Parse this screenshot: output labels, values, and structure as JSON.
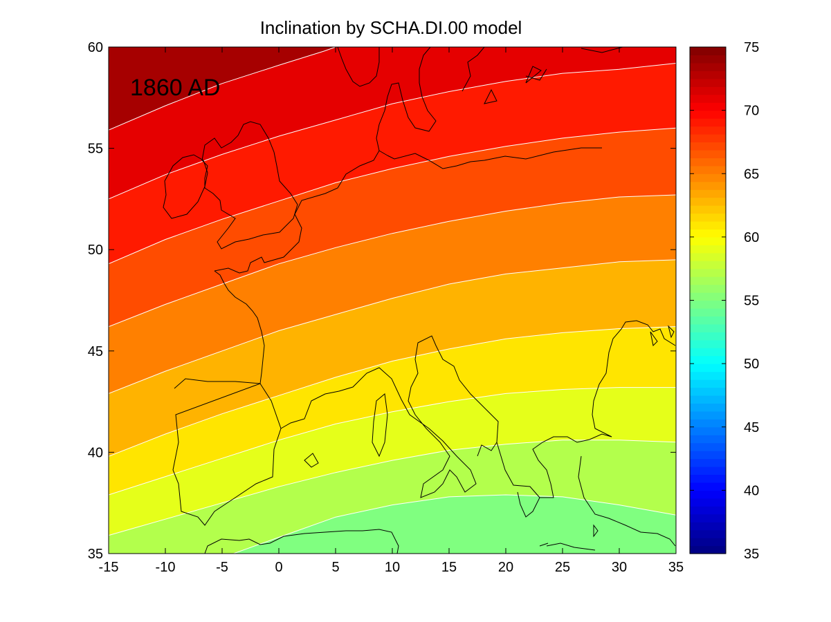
{
  "chart_data": {
    "type": "heatmap",
    "subtype": "filled-contour-map",
    "title": "Inclination by SCHA.DI.00 model",
    "annotation": "1860 AD",
    "xlabel": "",
    "ylabel": "",
    "xlim": [
      -15,
      35
    ],
    "ylim": [
      35,
      60
    ],
    "x_ticks": [
      "-15",
      "-10",
      "-5",
      "0",
      "5",
      "10",
      "15",
      "20",
      "25",
      "30",
      "35"
    ],
    "y_ticks": [
      "35",
      "40",
      "45",
      "50",
      "55",
      "60"
    ],
    "colorbar": {
      "colormap": "jet",
      "range": [
        35,
        75
      ],
      "ticks": [
        "35",
        "40",
        "45",
        "50",
        "55",
        "60",
        "65",
        "70",
        "75"
      ]
    },
    "contour_levels": [
      56,
      58,
      60,
      62,
      64,
      66,
      68,
      70,
      72
    ],
    "contour_line_color": "#ffffff",
    "coastline_color": "#000000",
    "contour_lines": [
      {
        "level": 56,
        "points": [
          [
            -4,
            35
          ],
          [
            0,
            35.8
          ],
          [
            5,
            36.8
          ],
          [
            10,
            37.4
          ],
          [
            15,
            37.8
          ],
          [
            20,
            37.9
          ],
          [
            25,
            37.8
          ],
          [
            30,
            37.4
          ],
          [
            35,
            36.9
          ]
        ]
      },
      {
        "level": 58,
        "points": [
          [
            -15,
            35.9
          ],
          [
            -10,
            36.7
          ],
          [
            -5,
            37.5
          ],
          [
            0,
            38.3
          ],
          [
            5,
            39
          ],
          [
            10,
            39.6
          ],
          [
            15,
            40.1
          ],
          [
            20,
            40.4
          ],
          [
            25,
            40.6
          ],
          [
            30,
            40.6
          ],
          [
            35,
            40.5
          ]
        ]
      },
      {
        "level": 60,
        "points": [
          [
            -15,
            37.9
          ],
          [
            -10,
            38.8
          ],
          [
            -5,
            39.7
          ],
          [
            0,
            40.6
          ],
          [
            5,
            41.4
          ],
          [
            10,
            42
          ],
          [
            15,
            42.5
          ],
          [
            20,
            42.9
          ],
          [
            25,
            43.1
          ],
          [
            30,
            43.2
          ],
          [
            35,
            43.2
          ]
        ]
      },
      {
        "level": 62,
        "points": [
          [
            -15,
            39.8
          ],
          [
            -10,
            40.9
          ],
          [
            -5,
            41.9
          ],
          [
            0,
            42.8
          ],
          [
            5,
            43.7
          ],
          [
            10,
            44.5
          ],
          [
            15,
            45.1
          ],
          [
            20,
            45.6
          ],
          [
            25,
            45.9
          ],
          [
            30,
            46.1
          ],
          [
            35,
            46.2
          ]
        ]
      },
      {
        "level": 64,
        "points": [
          [
            -15,
            42.9
          ],
          [
            -10,
            44
          ],
          [
            -5,
            45
          ],
          [
            0,
            46
          ],
          [
            5,
            46.8
          ],
          [
            10,
            47.6
          ],
          [
            15,
            48.3
          ],
          [
            20,
            48.8
          ],
          [
            25,
            49.1
          ],
          [
            30,
            49.4
          ],
          [
            35,
            49.5
          ]
        ]
      },
      {
        "level": 66,
        "points": [
          [
            -15,
            46.2
          ],
          [
            -10,
            47.3
          ],
          [
            -5,
            48.3
          ],
          [
            0,
            49.3
          ],
          [
            5,
            50.1
          ],
          [
            10,
            50.8
          ],
          [
            15,
            51.4
          ],
          [
            20,
            51.9
          ],
          [
            25,
            52.3
          ],
          [
            30,
            52.6
          ],
          [
            35,
            52.7
          ]
        ]
      },
      {
        "level": 68,
        "points": [
          [
            -15,
            49.3
          ],
          [
            -10,
            50.5
          ],
          [
            -5,
            51.5
          ],
          [
            0,
            52.4
          ],
          [
            5,
            53.3
          ],
          [
            10,
            54
          ],
          [
            15,
            54.6
          ],
          [
            20,
            55.1
          ],
          [
            25,
            55.5
          ],
          [
            30,
            55.8
          ],
          [
            35,
            56
          ]
        ]
      },
      {
        "level": 70,
        "points": [
          [
            -15,
            52.5
          ],
          [
            -10,
            53.7
          ],
          [
            -5,
            54.7
          ],
          [
            0,
            55.6
          ],
          [
            5,
            56.4
          ],
          [
            10,
            57.2
          ],
          [
            15,
            57.8
          ],
          [
            20,
            58.3
          ],
          [
            25,
            58.7
          ],
          [
            30,
            58.9
          ],
          [
            35,
            59.2
          ]
        ]
      },
      {
        "level": 72,
        "points": [
          [
            -15,
            55.9
          ],
          [
            -10,
            57.1
          ],
          [
            -5,
            58.2
          ],
          [
            0,
            59.1
          ],
          [
            4,
            59.8
          ],
          [
            5,
            60
          ]
        ]
      }
    ]
  }
}
